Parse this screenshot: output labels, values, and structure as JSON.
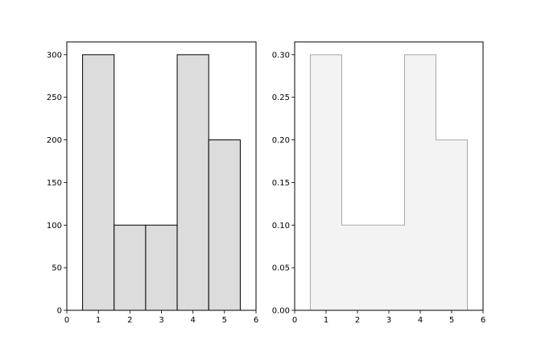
{
  "chart_data": [
    {
      "type": "bar",
      "style": "filled-bars",
      "bin_centers": [
        1,
        2,
        3,
        4,
        5
      ],
      "bin_width": 1,
      "values": [
        300,
        100,
        100,
        300,
        200
      ],
      "xlim": [
        0,
        6
      ],
      "ylim": [
        0,
        315
      ],
      "xticks": [
        0,
        1,
        2,
        3,
        4,
        5,
        6
      ],
      "yticks": [
        0,
        50,
        100,
        150,
        200,
        250,
        300
      ],
      "ytick_labels": [
        "0",
        "50",
        "100",
        "150",
        "200",
        "250",
        "300"
      ],
      "fill_color": "#dcdcdc",
      "edge_color": "#000000",
      "grid": false,
      "title": "",
      "xlabel": "",
      "ylabel": ""
    },
    {
      "type": "area",
      "style": "stepfilled-histogram",
      "bin_centers": [
        1,
        2,
        3,
        4,
        5
      ],
      "bin_width": 1,
      "values": [
        0.3,
        0.1,
        0.1,
        0.3,
        0.2
      ],
      "xlim": [
        0,
        6
      ],
      "ylim": [
        0,
        0.315
      ],
      "xticks": [
        0,
        1,
        2,
        3,
        4,
        5,
        6
      ],
      "yticks": [
        0,
        0.05,
        0.1,
        0.15,
        0.2,
        0.25,
        0.3
      ],
      "ytick_labels": [
        "0.00",
        "0.05",
        "0.10",
        "0.15",
        "0.20",
        "0.25",
        "0.30"
      ],
      "fill_color": "#f3f3f3",
      "edge_color": "#a8a8a8",
      "grid": false,
      "title": "",
      "xlabel": "",
      "ylabel": ""
    }
  ]
}
